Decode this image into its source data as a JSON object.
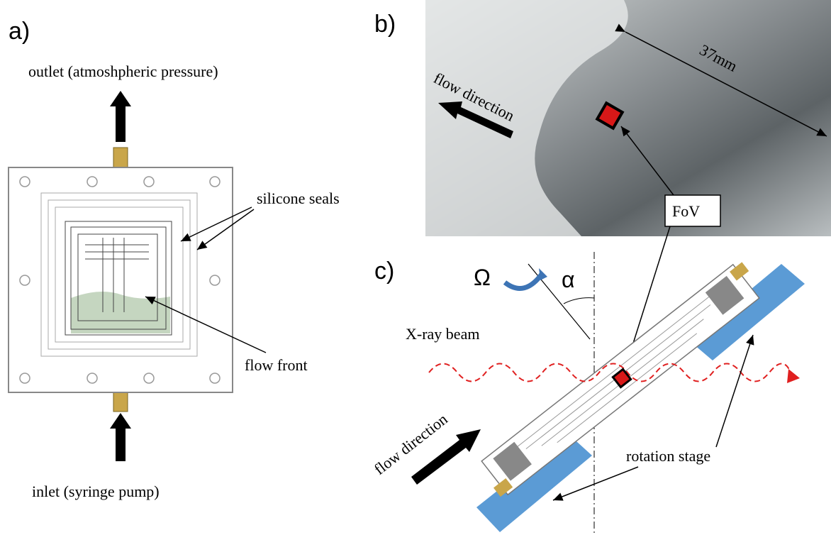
{
  "panel_a": {
    "label": "a)",
    "outlet": "outlet (atmoshpheric pressure)",
    "inlet": "inlet (syringe pump)",
    "seals": "silicone seals",
    "front": "flow front"
  },
  "panel_b": {
    "label": "b)",
    "flow": "flow direction",
    "size": "37mm",
    "fov": "FoV"
  },
  "panel_c": {
    "label": "c)",
    "omega": "Ω",
    "alpha": "α",
    "beam": "X-ray beam",
    "flow": "flow direction",
    "stage": "rotation stage"
  }
}
